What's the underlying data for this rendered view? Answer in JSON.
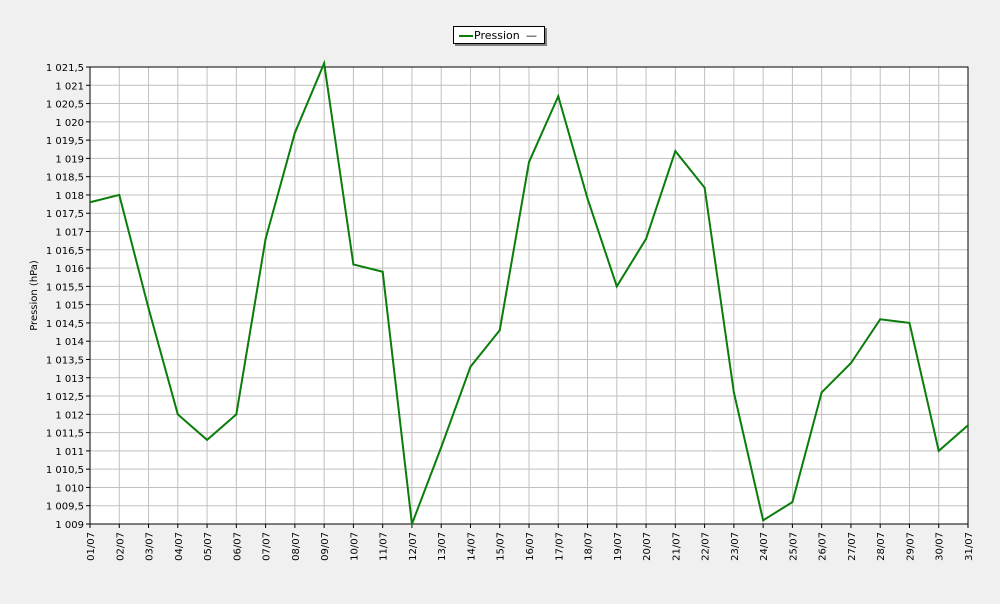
{
  "chart_data": {
    "type": "line",
    "ylabel": "Pression (hPa)",
    "ylim": [
      1009,
      1021.5
    ],
    "grid": true,
    "legend_position": "top-center",
    "legend_extra": "—",
    "y_ticks": [
      "1 009",
      "1 009,5",
      "1 010",
      "1 010,5",
      "1 011",
      "1 011,5",
      "1 012",
      "1 012,5",
      "1 013",
      "1 013,5",
      "1 014",
      "1 014,5",
      "1 015",
      "1 015,5",
      "1 016",
      "1 016,5",
      "1 017",
      "1 017,5",
      "1 018",
      "1 018,5",
      "1 019",
      "1 019,5",
      "1 020",
      "1 020,5",
      "1 021",
      "1 021,5"
    ],
    "categories": [
      "01/07",
      "02/07",
      "03/07",
      "04/07",
      "05/07",
      "06/07",
      "07/07",
      "08/07",
      "09/07",
      "10/07",
      "11/07",
      "12/07",
      "13/07",
      "14/07",
      "15/07",
      "16/07",
      "17/07",
      "18/07",
      "19/07",
      "20/07",
      "21/07",
      "22/07",
      "23/07",
      "24/07",
      "25/07",
      "26/07",
      "27/07",
      "28/07",
      "29/07",
      "30/07",
      "31/07"
    ],
    "series": [
      {
        "name": "Pression",
        "color": "#0a7d0a",
        "values": [
          1017.8,
          1018.0,
          1014.9,
          1012.0,
          1011.3,
          1012.0,
          1016.8,
          1019.7,
          1021.6,
          1016.1,
          1015.9,
          1009.0,
          1011.1,
          1013.3,
          1014.3,
          1018.9,
          1020.7,
          1017.9,
          1015.5,
          1016.8,
          1019.2,
          1018.2,
          1012.6,
          1009.1,
          1009.6,
          1012.6,
          1013.4,
          1014.6,
          1014.5,
          1011.0,
          1011.7
        ]
      }
    ]
  }
}
